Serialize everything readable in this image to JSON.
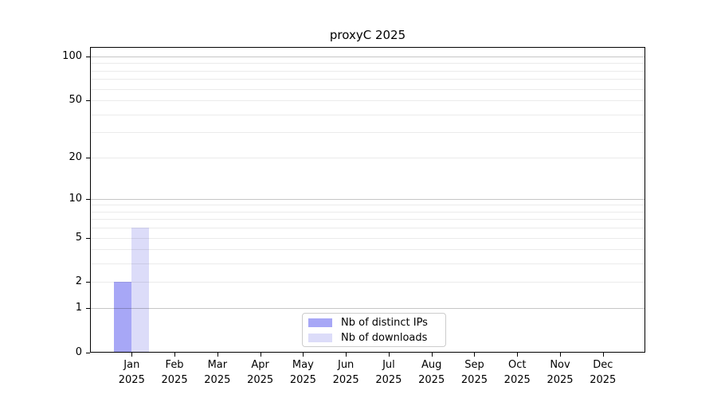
{
  "chart_data": {
    "type": "bar",
    "title": "proxyC 2025",
    "categories": [
      "Jan\n2025",
      "Feb\n2025",
      "Mar\n2025",
      "Apr\n2025",
      "May\n2025",
      "Jun\n2025",
      "Jul\n2025",
      "Aug\n2025",
      "Sep\n2025",
      "Oct\n2025",
      "Nov\n2025",
      "Dec\n2025"
    ],
    "series": [
      {
        "name": "Nb of distinct IPs",
        "color": "#a7a7f6",
        "values": [
          2,
          0,
          0,
          0,
          0,
          0,
          0,
          0,
          0,
          0,
          0,
          0
        ]
      },
      {
        "name": "Nb of downloads",
        "color": "#dcdcf9",
        "values": [
          6,
          0,
          0,
          0,
          0,
          0,
          0,
          0,
          0,
          0,
          0,
          0
        ]
      }
    ],
    "xlabel": "",
    "ylabel": "",
    "yscale": "log1p",
    "ylim": [
      0,
      100
    ],
    "y_ticks": [
      0,
      1,
      2,
      5,
      10,
      20,
      50,
      100
    ],
    "y_major_gridlines": [
      1,
      10,
      100
    ],
    "y_minor_gridlines": [
      2,
      3,
      4,
      5,
      6,
      7,
      8,
      9,
      20,
      30,
      40,
      50,
      60,
      70,
      80,
      90
    ],
    "grid": "horizontal",
    "grid_color_major": "#c6c6c6",
    "grid_color_minor": "#ebebeb",
    "legend_position": "lower center"
  }
}
